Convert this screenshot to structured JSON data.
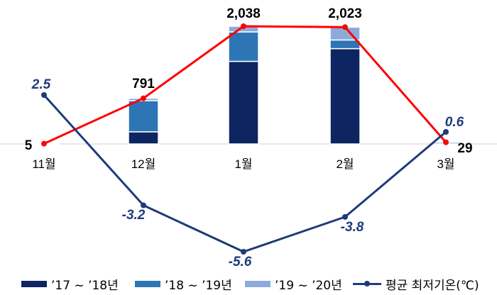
{
  "chart_data": {
    "type": "bar",
    "categories": [
      "11월",
      "12월",
      "1월",
      "2월",
      "3월"
    ],
    "stacked": true,
    "series": [
      {
        "name": "’17 ~ ’18년",
        "type": "bar",
        "values": [
          0,
          210,
          1430,
          1650,
          0
        ],
        "color": "#0d2560"
      },
      {
        "name": "’18 ~ ’19년",
        "type": "bar",
        "values": [
          0,
          540,
          510,
          150,
          0
        ],
        "color": "#2e75b6"
      },
      {
        "name": "’19 ~ ’20년",
        "type": "bar",
        "values": [
          5,
          41,
          98,
          223,
          29
        ],
        "color": "#8eaadb"
      },
      {
        "name": "",
        "type": "line",
        "values": [
          5,
          791,
          2038,
          2023,
          29
        ],
        "color": "#ff0000"
      },
      {
        "name": "평균 최저기온(℃)",
        "type": "line",
        "values": [
          2.5,
          -3.2,
          -5.6,
          -3.8,
          0.6
        ],
        "color": "#1f3a7a"
      }
    ],
    "total_labels": [
      "5",
      "791",
      "2,038",
      "2,023",
      "29"
    ],
    "temp_labels": [
      "2.5",
      "-3.2",
      "-5.6",
      "-3.8",
      "0.6"
    ],
    "bar_axis_range": [
      0,
      2150
    ],
    "temp_axis_range": [
      -6.5,
      7.5
    ],
    "grid": false,
    "legend_position": "bottom"
  }
}
